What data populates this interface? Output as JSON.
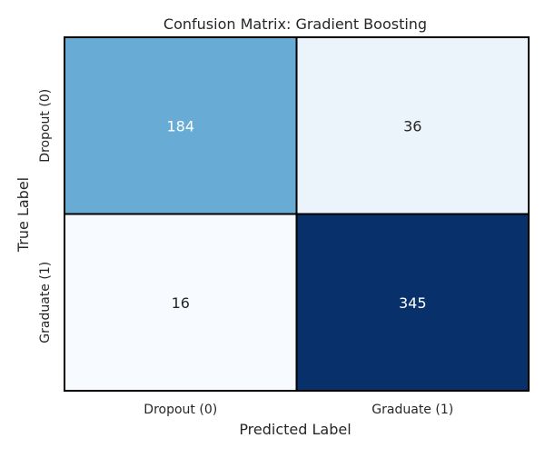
{
  "chart_data": {
    "type": "heatmap",
    "title": "Confusion Matrix: Gradient Boosting",
    "xlabel": "Predicted Label",
    "ylabel": "True Label",
    "x_categories": [
      "Dropout (0)",
      "Graduate (1)"
    ],
    "y_categories": [
      "Dropout (0)",
      "Graduate (1)"
    ],
    "values": [
      [
        184,
        36
      ],
      [
        16,
        345
      ]
    ],
    "colormap": "Blues",
    "annotations": true,
    "colorbar": false
  }
}
